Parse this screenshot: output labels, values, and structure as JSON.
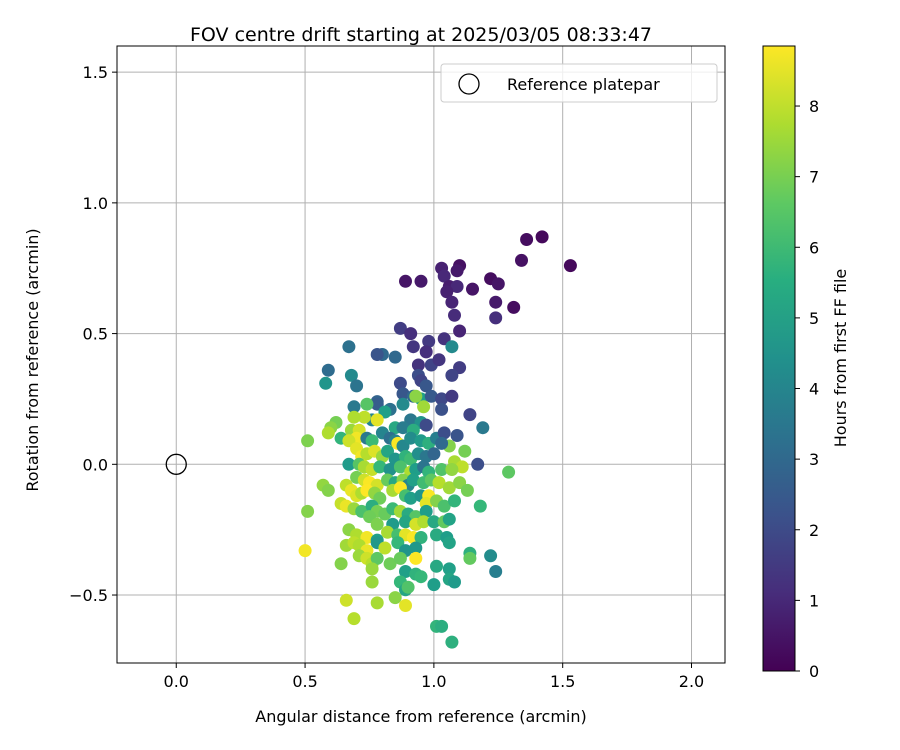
{
  "chart_data": {
    "type": "scatter",
    "title": "FOV centre drift starting at 2025/03/05 08:33:47",
    "xlabel": "Angular distance from reference (arcmin)",
    "ylabel": "Rotation from reference (arcmin)",
    "xlim": [
      -0.23,
      2.13
    ],
    "ylim": [
      -0.76,
      1.6
    ],
    "x_ticks": [
      0.0,
      0.5,
      1.0,
      1.5,
      2.0
    ],
    "x_tick_labels": [
      "0.0",
      "0.5",
      "1.0",
      "1.5",
      "2.0"
    ],
    "y_ticks": [
      -0.5,
      0.0,
      0.5,
      1.0,
      1.5
    ],
    "y_tick_labels": [
      "−0.5",
      "0.0",
      "0.5",
      "1.0",
      "1.5"
    ],
    "grid": true,
    "legend": {
      "placement": "top-right",
      "entries": [
        "Reference platepar"
      ]
    },
    "reference_point": {
      "x": 0.0,
      "y": 0.0,
      "marker": "open-circle"
    },
    "colorbar": {
      "label": "Hours from first FF file",
      "colormap": "viridis",
      "range": [
        0,
        8.85
      ],
      "ticks": [
        0,
        1,
        2,
        3,
        4,
        5,
        6,
        7,
        8
      ],
      "tick_labels": [
        "0",
        "1",
        "2",
        "3",
        "4",
        "5",
        "6",
        "7",
        "8"
      ]
    },
    "series": [
      {
        "points": [
          [
            1.42,
            0.87,
            0.2
          ],
          [
            1.36,
            0.86,
            0.3
          ],
          [
            1.53,
            0.76,
            0.2
          ],
          [
            1.34,
            0.78,
            0.4
          ],
          [
            1.22,
            0.71,
            0.3
          ],
          [
            1.25,
            0.69,
            0.5
          ],
          [
            1.31,
            0.6,
            0.3
          ],
          [
            1.24,
            0.62,
            0.6
          ],
          [
            1.24,
            0.56,
            1.2
          ],
          [
            1.15,
            0.67,
            0.5
          ],
          [
            1.1,
            0.76,
            0.4
          ],
          [
            1.09,
            0.74,
            0.6
          ],
          [
            1.03,
            0.75,
            0.8
          ],
          [
            1.04,
            0.72,
            1.0
          ],
          [
            1.06,
            0.68,
            0.7
          ],
          [
            1.09,
            0.68,
            1.0
          ],
          [
            0.95,
            0.7,
            0.6
          ],
          [
            0.89,
            0.7,
            0.5
          ],
          [
            1.05,
            0.66,
            0.8
          ],
          [
            1.07,
            0.62,
            0.9
          ],
          [
            1.08,
            0.57,
            1.1
          ],
          [
            1.1,
            0.51,
            0.9
          ],
          [
            0.87,
            0.52,
            1.6
          ],
          [
            0.91,
            0.5,
            1.2
          ],
          [
            0.98,
            0.47,
            1.5
          ],
          [
            1.04,
            0.48,
            1.3
          ],
          [
            0.92,
            0.45,
            1.4
          ],
          [
            0.97,
            0.43,
            1.2
          ],
          [
            1.07,
            0.45,
            4.2
          ],
          [
            0.99,
            0.38,
            1.8
          ],
          [
            1.02,
            0.4,
            1.4
          ],
          [
            1.1,
            0.37,
            1.6
          ],
          [
            0.94,
            0.38,
            1.3
          ],
          [
            0.8,
            0.42,
            3.0
          ],
          [
            0.78,
            0.42,
            2.3
          ],
          [
            0.85,
            0.41,
            3.0
          ],
          [
            0.67,
            0.45,
            3.3
          ],
          [
            0.59,
            0.36,
            3.1
          ],
          [
            0.58,
            0.31,
            4.6
          ],
          [
            0.68,
            0.34,
            4.2
          ],
          [
            0.7,
            0.3,
            3.4
          ],
          [
            0.87,
            0.31,
            2.0
          ],
          [
            0.94,
            0.34,
            2.1
          ],
          [
            0.95,
            0.32,
            1.8
          ],
          [
            0.97,
            0.3,
            2.4
          ],
          [
            1.07,
            0.34,
            1.8
          ],
          [
            0.88,
            0.27,
            2.4
          ],
          [
            0.92,
            0.26,
            3.0
          ],
          [
            0.95,
            0.25,
            5.0
          ],
          [
            0.99,
            0.26,
            2.5
          ],
          [
            1.03,
            0.25,
            1.9
          ],
          [
            1.07,
            0.26,
            1.5
          ],
          [
            1.03,
            0.21,
            2.2
          ],
          [
            0.78,
            0.24,
            2.8
          ],
          [
            0.78,
            0.23,
            2.6
          ],
          [
            0.74,
            0.23,
            6.5
          ],
          [
            0.69,
            0.22,
            3.6
          ],
          [
            0.88,
            0.23,
            4.2
          ],
          [
            0.93,
            0.26,
            7.3
          ],
          [
            0.96,
            0.22,
            7.6
          ],
          [
            0.83,
            0.21,
            3.3
          ],
          [
            0.81,
            0.2,
            5.0
          ],
          [
            0.76,
            0.17,
            4.0
          ],
          [
            0.78,
            0.17,
            8.5
          ],
          [
            0.73,
            0.18,
            8.0
          ],
          [
            0.69,
            0.18,
            7.8
          ],
          [
            1.14,
            0.19,
            1.8
          ],
          [
            1.19,
            0.14,
            3.6
          ],
          [
            0.91,
            0.17,
            3.5
          ],
          [
            0.95,
            0.16,
            4.5
          ],
          [
            0.97,
            0.15,
            2.0
          ],
          [
            0.85,
            0.14,
            5.3
          ],
          [
            0.88,
            0.14,
            3.7
          ],
          [
            0.92,
            0.13,
            5.5
          ],
          [
            0.62,
            0.16,
            7.0
          ],
          [
            0.6,
            0.14,
            7.3
          ],
          [
            0.59,
            0.12,
            7.8
          ],
          [
            0.64,
            0.1,
            5.8
          ],
          [
            0.68,
            0.13,
            7.5
          ],
          [
            0.71,
            0.13,
            8.3
          ],
          [
            0.7,
            0.1,
            8.7
          ],
          [
            0.74,
            0.1,
            3.6
          ],
          [
            0.76,
            0.09,
            6.0
          ],
          [
            0.8,
            0.12,
            4.0
          ],
          [
            0.83,
            0.1,
            3.2
          ],
          [
            0.85,
            0.09,
            3.9
          ],
          [
            0.86,
            0.08,
            8.8
          ],
          [
            0.88,
            0.07,
            4.1
          ],
          [
            0.91,
            0.1,
            4.3
          ],
          [
            0.95,
            0.09,
            4.8
          ],
          [
            0.98,
            0.08,
            5.6
          ],
          [
            1.01,
            0.1,
            3.8
          ],
          [
            1.04,
            0.12,
            2.1
          ],
          [
            1.06,
            0.07,
            7.2
          ],
          [
            1.09,
            0.11,
            2.3
          ],
          [
            1.12,
            0.05,
            7.0
          ],
          [
            1.03,
            0.08,
            3.0
          ],
          [
            0.67,
            0.09,
            8.2
          ],
          [
            0.7,
            0.06,
            8.5
          ],
          [
            0.72,
            0.03,
            8.7
          ],
          [
            0.74,
            0.04,
            7.9
          ],
          [
            0.77,
            0.05,
            8.4
          ],
          [
            0.8,
            0.03,
            7.5
          ],
          [
            0.82,
            0.05,
            5.2
          ],
          [
            0.85,
            0.02,
            4.6
          ],
          [
            0.89,
            0.03,
            5.7
          ],
          [
            0.91,
            0.02,
            6.1
          ],
          [
            0.94,
            0.04,
            4.4
          ],
          [
            0.97,
            0.03,
            3.5
          ],
          [
            1.0,
            0.04,
            2.9
          ],
          [
            1.08,
            0.01,
            7.7
          ],
          [
            1.11,
            -0.01,
            8.0
          ],
          [
            1.17,
            0.0,
            2.1
          ],
          [
            0.51,
            0.09,
            7.1
          ],
          [
            0.67,
            0.0,
            4.8
          ],
          [
            0.71,
            0.0,
            6.5
          ],
          [
            0.73,
            -0.01,
            7.7
          ],
          [
            0.76,
            -0.02,
            8.1
          ],
          [
            0.79,
            -0.01,
            5.9
          ],
          [
            0.83,
            -0.02,
            4.5
          ],
          [
            0.87,
            -0.01,
            6.3
          ],
          [
            0.91,
            -0.03,
            7.8
          ],
          [
            0.93,
            -0.02,
            4.9
          ],
          [
            0.96,
            -0.01,
            3.4
          ],
          [
            0.98,
            -0.03,
            5.8
          ],
          [
            1.03,
            -0.02,
            6.4
          ],
          [
            1.07,
            -0.02,
            7.4
          ],
          [
            1.29,
            -0.03,
            6.6
          ],
          [
            0.7,
            -0.05,
            7.0
          ],
          [
            0.73,
            -0.06,
            8.2
          ],
          [
            0.75,
            -0.07,
            8.8
          ],
          [
            0.78,
            -0.08,
            8.3
          ],
          [
            0.82,
            -0.06,
            6.8
          ],
          [
            0.85,
            -0.07,
            5.3
          ],
          [
            0.88,
            -0.06,
            7.2
          ],
          [
            0.9,
            -0.08,
            4.0
          ],
          [
            0.92,
            -0.06,
            5.0
          ],
          [
            0.96,
            -0.07,
            6.1
          ],
          [
            0.99,
            -0.06,
            6.6
          ],
          [
            1.02,
            -0.07,
            7.9
          ],
          [
            1.06,
            -0.09,
            7.6
          ],
          [
            1.1,
            -0.07,
            7.3
          ],
          [
            1.13,
            -0.1,
            7.0
          ],
          [
            0.57,
            -0.08,
            7.4
          ],
          [
            0.59,
            -0.1,
            7.2
          ],
          [
            0.66,
            -0.08,
            8.0
          ],
          [
            0.68,
            -0.1,
            8.6
          ],
          [
            0.7,
            -0.12,
            8.4
          ],
          [
            0.72,
            -0.11,
            7.8
          ],
          [
            0.74,
            -0.1,
            8.9
          ],
          [
            0.77,
            -0.11,
            7.4
          ],
          [
            0.79,
            -0.13,
            6.9
          ],
          [
            0.84,
            -0.1,
            7.7
          ],
          [
            0.87,
            -0.09,
            8.8
          ],
          [
            0.89,
            -0.12,
            6.2
          ],
          [
            0.91,
            -0.13,
            5.0
          ],
          [
            0.95,
            -0.12,
            4.6
          ],
          [
            0.98,
            -0.12,
            8.8
          ],
          [
            0.97,
            -0.15,
            8.5
          ],
          [
            1.01,
            -0.14,
            7.2
          ],
          [
            1.04,
            -0.16,
            6.3
          ],
          [
            1.08,
            -0.14,
            5.8
          ],
          [
            1.18,
            -0.16,
            5.9
          ],
          [
            0.51,
            -0.18,
            7.2
          ],
          [
            0.64,
            -0.15,
            8.1
          ],
          [
            0.66,
            -0.16,
            8.6
          ],
          [
            0.69,
            -0.17,
            7.5
          ],
          [
            0.72,
            -0.18,
            6.3
          ],
          [
            0.76,
            -0.16,
            5.5
          ],
          [
            0.78,
            -0.18,
            7.0
          ],
          [
            0.81,
            -0.19,
            6.8
          ],
          [
            0.84,
            -0.17,
            6.0
          ],
          [
            0.87,
            -0.18,
            7.6
          ],
          [
            0.9,
            -0.19,
            5.4
          ],
          [
            0.93,
            -0.2,
            6.5
          ],
          [
            0.97,
            -0.18,
            4.9
          ],
          [
            0.75,
            -0.2,
            6.9
          ],
          [
            0.78,
            -0.23,
            7.1
          ],
          [
            0.84,
            -0.23,
            4.8
          ],
          [
            0.89,
            -0.22,
            5.2
          ],
          [
            0.93,
            -0.23,
            8.3
          ],
          [
            0.96,
            -0.22,
            7.8
          ],
          [
            1.0,
            -0.22,
            5.3
          ],
          [
            1.04,
            -0.22,
            6.7
          ],
          [
            1.06,
            -0.21,
            5.1
          ],
          [
            0.67,
            -0.25,
            7.3
          ],
          [
            0.7,
            -0.27,
            7.8
          ],
          [
            0.74,
            -0.28,
            8.7
          ],
          [
            0.78,
            -0.29,
            5.0
          ],
          [
            0.82,
            -0.26,
            7.7
          ],
          [
            0.86,
            -0.27,
            6.2
          ],
          [
            0.89,
            -0.27,
            8.5
          ],
          [
            0.92,
            -0.28,
            8.8
          ],
          [
            0.95,
            -0.28,
            5.7
          ],
          [
            1.01,
            -0.27,
            5.4
          ],
          [
            0.78,
            -0.3,
            4.7
          ],
          [
            0.81,
            -0.32,
            8.0
          ],
          [
            0.86,
            -0.3,
            5.9
          ],
          [
            0.89,
            -0.33,
            4.6
          ],
          [
            0.93,
            -0.32,
            4.7
          ],
          [
            1.05,
            -0.28,
            4.9
          ],
          [
            1.06,
            -0.3,
            5.1
          ],
          [
            0.5,
            -0.33,
            8.7
          ],
          [
            0.66,
            -0.31,
            7.6
          ],
          [
            0.69,
            -0.3,
            8.0
          ],
          [
            0.71,
            -0.31,
            7.8
          ],
          [
            0.74,
            -0.33,
            8.6
          ],
          [
            0.71,
            -0.35,
            7.5
          ],
          [
            0.74,
            -0.36,
            8.2
          ],
          [
            0.76,
            -0.38,
            7.9
          ],
          [
            0.78,
            -0.36,
            6.6
          ],
          [
            0.83,
            -0.38,
            6.9
          ],
          [
            0.87,
            -0.36,
            6.8
          ],
          [
            0.93,
            -0.36,
            8.9
          ],
          [
            1.01,
            -0.39,
            5.3
          ],
          [
            1.06,
            -0.4,
            5.0
          ],
          [
            1.14,
            -0.34,
            5.6
          ],
          [
            1.14,
            -0.36,
            6.7
          ],
          [
            1.22,
            -0.35,
            4.3
          ],
          [
            1.24,
            -0.41,
            3.8
          ],
          [
            0.64,
            -0.38,
            7.2
          ],
          [
            0.76,
            -0.4,
            7.5
          ],
          [
            0.89,
            -0.41,
            5.0
          ],
          [
            0.93,
            -0.42,
            5.7
          ],
          [
            0.95,
            -0.43,
            5.9
          ],
          [
            1.0,
            -0.46,
            4.9
          ],
          [
            1.06,
            -0.44,
            5.2
          ],
          [
            1.08,
            -0.45,
            4.8
          ],
          [
            0.76,
            -0.45,
            7.5
          ],
          [
            0.87,
            -0.45,
            5.9
          ],
          [
            0.89,
            -0.48,
            5.2
          ],
          [
            0.9,
            -0.47,
            6.4
          ],
          [
            0.85,
            -0.51,
            7.3
          ],
          [
            0.66,
            -0.52,
            8.2
          ],
          [
            0.78,
            -0.53,
            7.7
          ],
          [
            0.89,
            -0.54,
            8.5
          ],
          [
            0.69,
            -0.59,
            7.9
          ],
          [
            1.01,
            -0.62,
            5.8
          ],
          [
            1.03,
            -0.62,
            5.5
          ],
          [
            1.07,
            -0.68,
            5.6
          ]
        ]
      }
    ]
  }
}
